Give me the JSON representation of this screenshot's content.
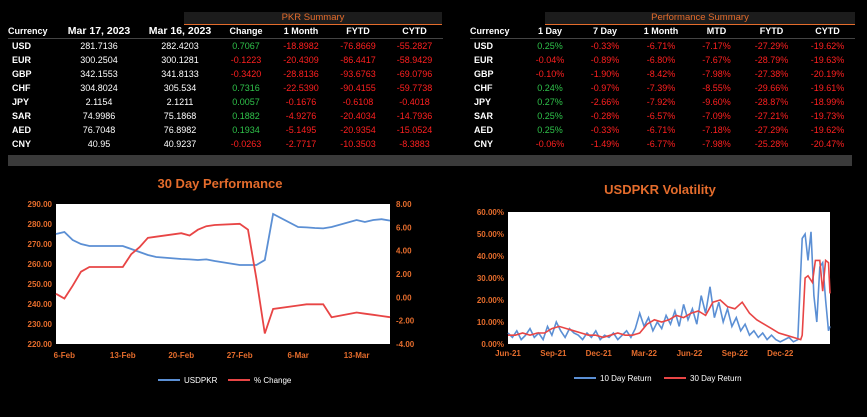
{
  "pkr_summary": {
    "title": "PKR Summary",
    "headers": [
      "Currency",
      "Mar 17, 2023",
      "Mar 16, 2023",
      "Change",
      "1 Month",
      "FYTD",
      "CYTD"
    ],
    "rows": [
      [
        "USD",
        "281.7136",
        "282.4203",
        "0.7067",
        "-18.8982",
        "-76.8669",
        "-55.2827"
      ],
      [
        "EUR",
        "300.2504",
        "300.1281",
        "-0.1223",
        "-20.4309",
        "-86.4417",
        "-58.9429"
      ],
      [
        "GBP",
        "342.1553",
        "341.8133",
        "-0.3420",
        "-28.8136",
        "-93.6763",
        "-69.0796"
      ],
      [
        "CHF",
        "304.8024",
        "305.534",
        "0.7316",
        "-22.5390",
        "-90.4155",
        "-59.7738"
      ],
      [
        "JPY",
        "2.1154",
        "2.1211",
        "0.0057",
        "-0.1676",
        "-0.6108",
        "-0.4018"
      ],
      [
        "SAR",
        "74.9986",
        "75.1868",
        "0.1882",
        "-4.9276",
        "-20.4034",
        "-14.7936"
      ],
      [
        "AED",
        "76.7048",
        "76.8982",
        "0.1934",
        "-5.1495",
        "-20.9354",
        "-15.0524"
      ],
      [
        "CNY",
        "40.95",
        "40.9237",
        "-0.0263",
        "-2.7717",
        "-10.3503",
        "-8.3883"
      ]
    ]
  },
  "performance_summary": {
    "title": "Performance Summary",
    "headers": [
      "Currency",
      "1 Day",
      "7 Day",
      "1 Month",
      "MTD",
      "FYTD",
      "CYTD"
    ],
    "rows": [
      [
        "USD",
        "0.25%",
        "-0.33%",
        "-6.71%",
        "-7.17%",
        "-27.29%",
        "-19.62%"
      ],
      [
        "EUR",
        "-0.04%",
        "-0.89%",
        "-6.80%",
        "-7.67%",
        "-28.79%",
        "-19.63%"
      ],
      [
        "GBP",
        "-0.10%",
        "-1.90%",
        "-8.42%",
        "-7.98%",
        "-27.38%",
        "-20.19%"
      ],
      [
        "CHF",
        "0.24%",
        "-0.97%",
        "-7.39%",
        "-8.55%",
        "-29.66%",
        "-19.61%"
      ],
      [
        "JPY",
        "0.27%",
        "-2.66%",
        "-7.92%",
        "-9.60%",
        "-28.87%",
        "-18.99%"
      ],
      [
        "SAR",
        "0.25%",
        "-0.28%",
        "-6.57%",
        "-7.09%",
        "-27.21%",
        "-19.73%"
      ],
      [
        "AED",
        "0.25%",
        "-0.33%",
        "-6.71%",
        "-7.18%",
        "-27.29%",
        "-19.62%"
      ],
      [
        "CNY",
        "-0.06%",
        "-1.49%",
        "-6.77%",
        "-7.98%",
        "-25.28%",
        "-20.47%"
      ]
    ]
  },
  "colors": {
    "positive": "#2fc24a",
    "negative": "#ff2020",
    "accent": "#e46c2c",
    "blue": "#5b8fd4",
    "red": "#e84545"
  },
  "chart_data": [
    {
      "type": "line",
      "title": "30 Day Performance",
      "x_dates": [
        "2023-02-05",
        "2023-02-06",
        "2023-02-07",
        "2023-02-08",
        "2023-02-09",
        "2023-02-10",
        "2023-02-13",
        "2023-02-14",
        "2023-02-15",
        "2023-02-16",
        "2023-02-17",
        "2023-02-20",
        "2023-02-21",
        "2023-02-22",
        "2023-02-23",
        "2023-02-24",
        "2023-02-27",
        "2023-02-28",
        "2023-03-01",
        "2023-03-02",
        "2023-03-03",
        "2023-03-06",
        "2023-03-07",
        "2023-03-08",
        "2023-03-09",
        "2023-03-10",
        "2023-03-13",
        "2023-03-14",
        "2023-03-15",
        "2023-03-16",
        "2023-03-17"
      ],
      "x_ticks": [
        "6-Feb",
        "13-Feb",
        "20-Feb",
        "27-Feb",
        "6-Mar",
        "13-Mar"
      ],
      "x_tick_dates": [
        "2023-02-06",
        "2023-02-13",
        "2023-02-20",
        "2023-02-27",
        "2023-03-06",
        "2023-03-13"
      ],
      "y_left": {
        "ticks": [
          "220.00",
          "230.00",
          "240.00",
          "250.00",
          "260.00",
          "270.00",
          "280.00",
          "290.00"
        ],
        "range": [
          220,
          290
        ]
      },
      "y_right": {
        "ticks": [
          "-4.00",
          "-2.00",
          "0.00",
          "2.00",
          "4.00",
          "6.00",
          "8.00"
        ],
        "range": [
          -4,
          8
        ]
      },
      "series": [
        {
          "name": "USDPKR",
          "axis": "left",
          "color": "#5b8fd4",
          "values": [
            275,
            276,
            272,
            270,
            269,
            269,
            269,
            267.5,
            266,
            264.5,
            263.5,
            262.5,
            262.3,
            262,
            262.3,
            261.5,
            259.5,
            259.5,
            259.5,
            262,
            285,
            278.5,
            278.3,
            278,
            277.8,
            278.5,
            282,
            281,
            282,
            282.4,
            281.7
          ]
        },
        {
          "name": "% Change",
          "axis": "right",
          "color": "#e84545",
          "values": [
            0.3,
            -0.1,
            1.0,
            2.2,
            2.6,
            2.6,
            2.6,
            3.7,
            4.3,
            5.1,
            5.2,
            5.5,
            5.3,
            5.8,
            6.1,
            6.2,
            6.3,
            5.8,
            1.6,
            -3.1,
            -1.0,
            -0.7,
            -0.6,
            -0.6,
            -0.6,
            -1.7,
            -1.3,
            -1.4,
            -1.5,
            -1.6,
            -1.7
          ]
        }
      ]
    },
    {
      "type": "line",
      "title": "USDPKR Volatility",
      "x_ticks": [
        "Jun-21",
        "Sep-21",
        "Dec-21",
        "Mar-22",
        "Jun-22",
        "Sep-22",
        "Dec-22"
      ],
      "y_ticks": [
        "0.00%",
        "10.00%",
        "20.00%",
        "30.00%",
        "40.00%",
        "50.00%",
        "60.00%"
      ],
      "y_range": [
        0,
        60
      ],
      "x_range_months": [
        0,
        22
      ],
      "series": [
        {
          "name": "10 Day Return",
          "color": "#5b8fd4",
          "x": [
            0,
            0.3,
            0.6,
            0.9,
            1.2,
            1.5,
            1.8,
            2.1,
            2.4,
            2.7,
            3.0,
            3.3,
            3.6,
            3.9,
            4.2,
            4.5,
            4.8,
            5.1,
            5.4,
            5.7,
            6.0,
            6.3,
            6.6,
            6.9,
            7.2,
            7.5,
            7.8,
            8.1,
            8.4,
            8.7,
            9.0,
            9.3,
            9.6,
            9.9,
            10.2,
            10.5,
            10.8,
            11.1,
            11.4,
            11.7,
            12.0,
            12.3,
            12.6,
            12.9,
            13.2,
            13.5,
            13.8,
            14.1,
            14.4,
            14.7,
            15.0,
            15.3,
            15.6,
            15.9,
            16.2,
            16.5,
            16.8,
            17.1,
            17.4,
            17.7,
            18.0,
            18.3,
            18.6,
            18.9,
            19.2,
            19.5,
            19.8,
            20.1,
            20.3,
            20.5,
            20.7,
            20.9,
            21.1,
            21.3,
            21.5,
            21.7,
            21.9,
            22.0
          ],
          "values": [
            5,
            3,
            6,
            2,
            4,
            7,
            3,
            5,
            2,
            8,
            4,
            10,
            6,
            3,
            7,
            5,
            4,
            2,
            5,
            3,
            6,
            2,
            4,
            3,
            5,
            2,
            4,
            6,
            3,
            7,
            14,
            8,
            12,
            6,
            10,
            7,
            13,
            9,
            15,
            8,
            18,
            11,
            16,
            9,
            22,
            14,
            26,
            12,
            19,
            10,
            16,
            8,
            12,
            6,
            9,
            4,
            6,
            3,
            5,
            2,
            4,
            2,
            1,
            2,
            3,
            1,
            2,
            48,
            50,
            38,
            51,
            22,
            10,
            35,
            37,
            20,
            6,
            8
          ]
        },
        {
          "name": "30 Day Return",
          "color": "#e84545",
          "x": [
            0,
            0.5,
            1.0,
            1.5,
            2.0,
            2.5,
            3.0,
            3.5,
            4.0,
            4.5,
            5.0,
            5.5,
            6.0,
            6.5,
            7.0,
            7.5,
            8.0,
            8.5,
            9.0,
            9.5,
            10.0,
            10.5,
            11.0,
            11.5,
            12.0,
            12.5,
            13.0,
            13.5,
            14.0,
            14.5,
            15.0,
            15.5,
            16.0,
            16.5,
            17.0,
            17.5,
            18.0,
            18.5,
            19.0,
            19.5,
            20.0,
            20.1,
            20.3,
            20.5,
            20.8,
            21.0,
            21.3,
            21.5,
            21.7,
            21.9,
            22.0
          ],
          "values": [
            4,
            4,
            5,
            4,
            5,
            5,
            7,
            8,
            7,
            6,
            5,
            4,
            4,
            3,
            4,
            5,
            4,
            4,
            5,
            9,
            11,
            10,
            11,
            13,
            12,
            14,
            15,
            13,
            19,
            20,
            17,
            16,
            19,
            14,
            11,
            9,
            7,
            5,
            4,
            3,
            2,
            4,
            30,
            31,
            28,
            38,
            38,
            24,
            38,
            37,
            23
          ]
        }
      ]
    }
  ]
}
